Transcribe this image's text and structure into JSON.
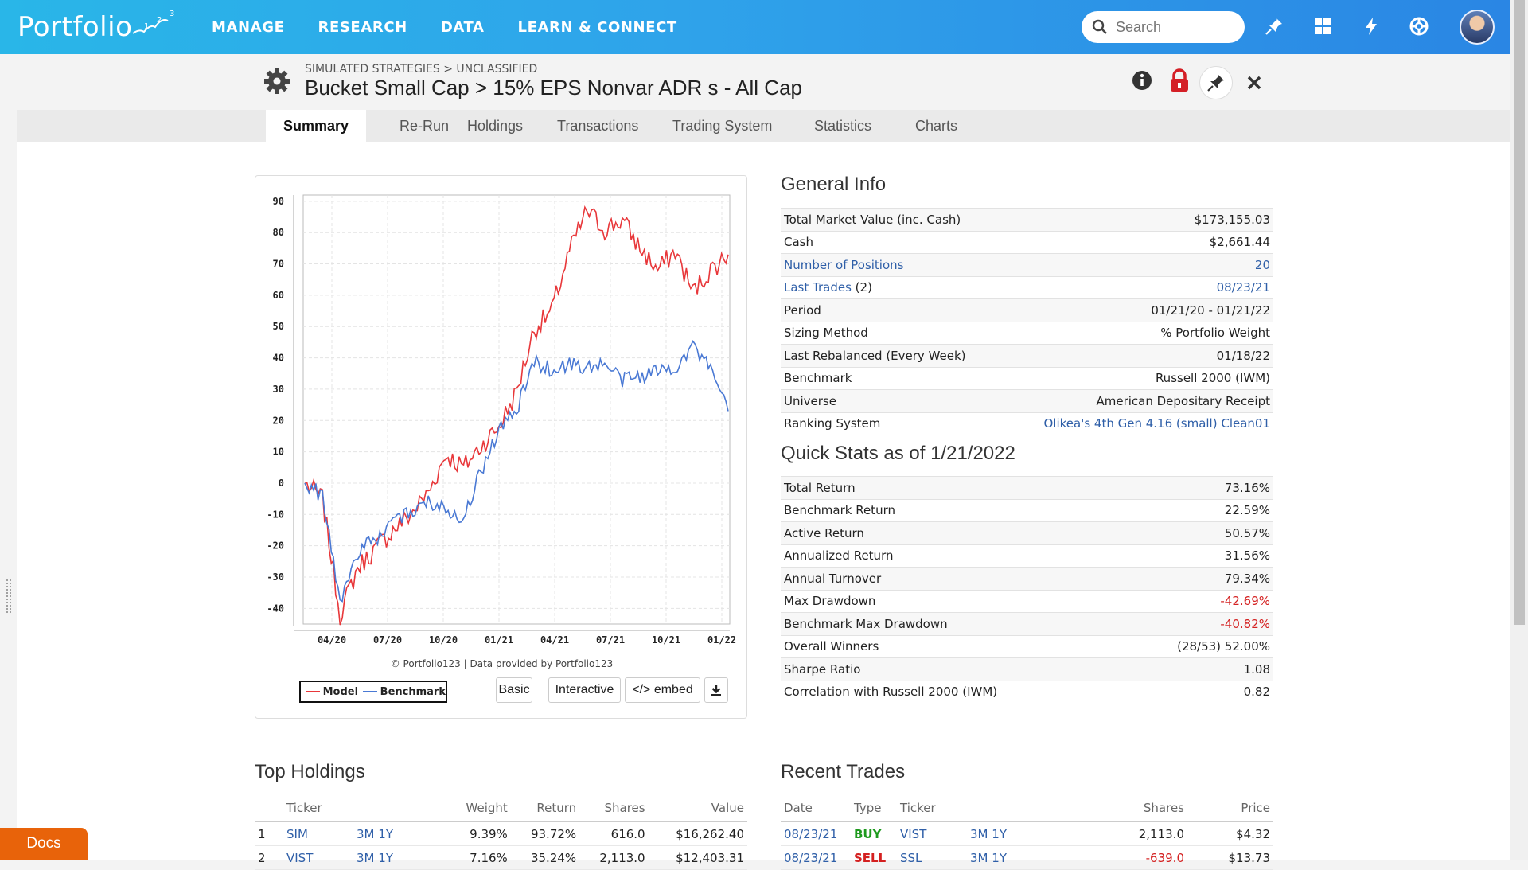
{
  "brand": {
    "name": "Portfolio",
    "sup": "123"
  },
  "nav": [
    "MANAGE",
    "RESEARCH",
    "DATA",
    "LEARN & CONNECT"
  ],
  "search": {
    "placeholder": "Search"
  },
  "header": {
    "breadcrumb": "SIMULATED STRATEGIES > UNCLASSIFIED",
    "title": "Bucket Small Cap > 15% EPS Nonvar ADR s - All Cap"
  },
  "tabs": [
    "Summary",
    "Re-Run",
    "Holdings",
    "Transactions",
    "Trading System",
    "Statistics",
    "Charts"
  ],
  "chart": {
    "credit": "© Portfolio123 | Data provided by Portfolio123",
    "legend": {
      "model": "Model",
      "benchmark": "Benchmark"
    },
    "buttons": {
      "basic": "Basic",
      "interactive": "Interactive",
      "embed": "</> embed"
    }
  },
  "chart_data": {
    "type": "line",
    "title": "",
    "xlabel": "",
    "ylabel": "",
    "ylim": [
      -45,
      92
    ],
    "yticks": [
      90,
      80,
      70,
      60,
      50,
      40,
      30,
      20,
      10,
      0,
      -10,
      -20,
      -30,
      -40
    ],
    "xticks": [
      "04/20",
      "07/20",
      "10/20",
      "01/21",
      "04/21",
      "07/21",
      "10/21",
      "01/22"
    ],
    "x": [
      "01/20",
      "02/20",
      "03/20",
      "04/20",
      "05/20",
      "06/20",
      "07/20",
      "08/20",
      "09/20",
      "10/20",
      "11/20",
      "12/20",
      "01/21",
      "02/21",
      "03/21",
      "04/21",
      "05/21",
      "06/21",
      "07/21",
      "08/21",
      "09/21",
      "10/21",
      "11/21",
      "12/21",
      "01/22"
    ],
    "series": [
      {
        "name": "Model",
        "color": "#e8373a",
        "values": [
          0,
          -5,
          -42,
          -27,
          -21,
          -15,
          -10,
          -3,
          9,
          5,
          12,
          18,
          29,
          49,
          55,
          74,
          87,
          81,
          84,
          75,
          68,
          74,
          61,
          68,
          73
        ]
      },
      {
        "name": "Benchmark",
        "color": "#4a79d4",
        "values": [
          0,
          -4,
          -38,
          -22,
          -18,
          -13,
          -9,
          -6,
          -8,
          -11,
          4,
          17,
          23,
          39,
          36,
          38,
          37,
          38,
          33,
          34,
          36,
          37,
          44,
          36,
          23
        ]
      }
    ],
    "grid": true,
    "legend_position": "bottom"
  },
  "general_info": {
    "title": "General Info",
    "rows": [
      {
        "label": "Total Market Value (inc. Cash)",
        "value": "$173,155.03"
      },
      {
        "label": "Cash",
        "value": "$2,661.44"
      },
      {
        "label": "Number of Positions",
        "value": "20",
        "link": true
      },
      {
        "label": "Last Trades",
        "suffix": " (2)",
        "value": "08/23/21",
        "link": true
      },
      {
        "label": "Period",
        "value": "01/21/20 - 01/21/22"
      },
      {
        "label": "Sizing Method",
        "value": "% Portfolio Weight"
      },
      {
        "label": "Last Rebalanced (Every Week)",
        "value": "01/18/22"
      },
      {
        "label": "Benchmark",
        "value": "Russell 2000 (IWM)"
      },
      {
        "label": "Universe",
        "value": "American Depositary Receipt"
      },
      {
        "label": "Ranking System",
        "value": "Olikea's 4th Gen 4.16 (small) Clean01",
        "vlink": true
      }
    ]
  },
  "quick_stats": {
    "title": "Quick Stats as of 1/21/2022",
    "rows": [
      {
        "label": "Total Return",
        "value": "73.16%"
      },
      {
        "label": "Benchmark Return",
        "value": "22.59%"
      },
      {
        "label": "Active Return",
        "value": "50.57%"
      },
      {
        "label": "Annualized Return",
        "value": "31.56%"
      },
      {
        "label": "Annual Turnover",
        "value": "79.34%"
      },
      {
        "label": "Max Drawdown",
        "value": "-42.69%",
        "neg": true
      },
      {
        "label": "Benchmark Max Drawdown",
        "value": "-40.82%",
        "neg": true
      },
      {
        "label": "Overall Winners",
        "value": "(28/53) 52.00%"
      },
      {
        "label": "Sharpe Ratio",
        "value": "1.08"
      },
      {
        "label": "Correlation with Russell 2000 (IWM)",
        "value": "0.82"
      }
    ]
  },
  "top_holdings": {
    "title": "Top Holdings",
    "columns": [
      "",
      "Ticker",
      "",
      "Weight",
      "Return",
      "Shares",
      "Value"
    ],
    "rows": [
      {
        "n": "1",
        "ticker": "SIM",
        "p1": "3M",
        "p2": "1Y",
        "weight": "9.39%",
        "ret": "93.72%",
        "shares": "616.0",
        "value": "$16,262.40"
      },
      {
        "n": "2",
        "ticker": "VIST",
        "p1": "3M",
        "p2": "1Y",
        "weight": "7.16%",
        "ret": "35.24%",
        "shares": "2,113.0",
        "value": "$12,403.31"
      }
    ]
  },
  "recent_trades": {
    "title": "Recent Trades",
    "columns": [
      "Date",
      "Type",
      "Ticker",
      "",
      "Shares",
      "Price"
    ],
    "rows": [
      {
        "date": "08/23/21",
        "type": "BUY",
        "ticker": "VIST",
        "p1": "3M",
        "p2": "1Y",
        "shares": "2,113.0",
        "price": "$4.32"
      },
      {
        "date": "08/23/21",
        "type": "SELL",
        "ticker": "SSL",
        "p1": "3M",
        "p2": "1Y",
        "shares": "-639.0",
        "price": "$13.73"
      }
    ]
  },
  "docs": "Docs"
}
